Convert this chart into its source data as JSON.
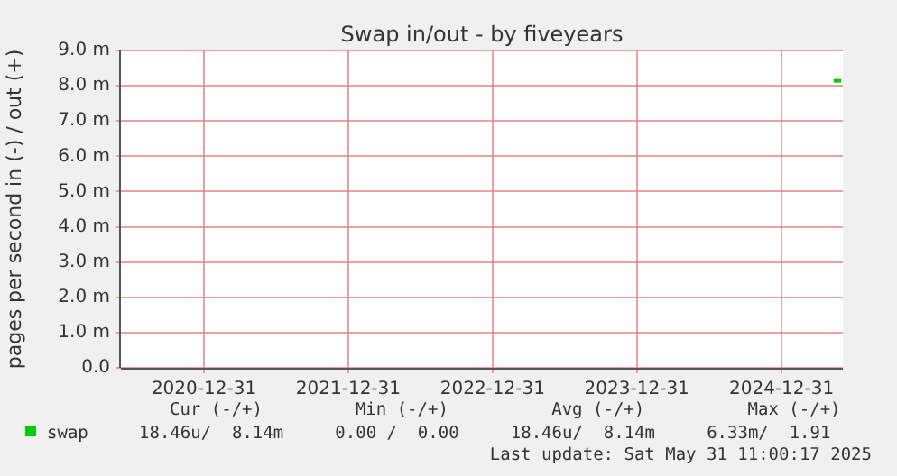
{
  "chart_data": {
    "type": "line",
    "title": "Swap in/out - by fiveyears",
    "ylabel": "pages per second in (-) / out (+)",
    "x": [
      "2025-05-12",
      "2025-05-31"
    ],
    "series": [
      {
        "name": "swap",
        "color": "#00cc00",
        "values": [
          8.14,
          8.14
        ]
      }
    ],
    "xlim": [
      "2020-06-04",
      "2025-06-04"
    ],
    "xticks": [
      "2020-12-31",
      "2021-12-31",
      "2022-12-31",
      "2023-12-31",
      "2024-12-31"
    ],
    "ylim": [
      0,
      9
    ],
    "yticks": [
      {
        "value": 0,
        "label": "0.0"
      },
      {
        "value": 1,
        "label": "1.0 m"
      },
      {
        "value": 2,
        "label": "2.0 m"
      },
      {
        "value": 3,
        "label": "3.0 m"
      },
      {
        "value": 4,
        "label": "4.0 m"
      },
      {
        "value": 5,
        "label": "5.0 m"
      },
      {
        "value": 6,
        "label": "6.0 m"
      },
      {
        "value": 7,
        "label": "7.0 m"
      },
      {
        "value": 8,
        "label": "8.0 m"
      },
      {
        "value": 9,
        "label": "9.0 m"
      }
    ],
    "grid": true,
    "legend": "bottom left",
    "marker": "none",
    "annotations": [
      "Cur (-/+)         Min (-/+)          Avg (-/+)          Max (-/+)",
      "18.46u/  8.14m     0.00 /  0.00     18.46u/  8.14m     6.33m/  1.91",
      "Last update: Sat May 31 11:00:17 2025"
    ]
  }
}
